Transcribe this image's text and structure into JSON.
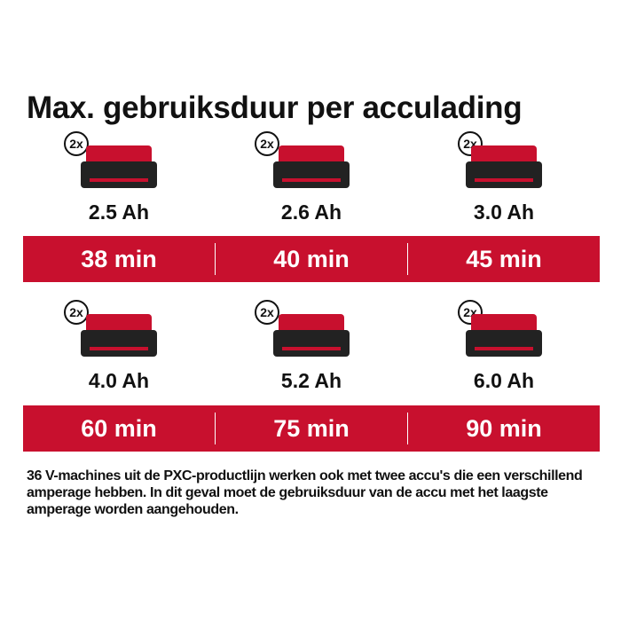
{
  "title": "Max. gebruiksduur per acculading",
  "quantity_badge": "2x",
  "brand_color": "#c8102e",
  "batteries": [
    {
      "capacity": "2.5 Ah",
      "runtime": "38 min"
    },
    {
      "capacity": "2.6 Ah",
      "runtime": "40 min"
    },
    {
      "capacity": "3.0 Ah",
      "runtime": "45 min"
    },
    {
      "capacity": "4.0 Ah",
      "runtime": "60 min"
    },
    {
      "capacity": "5.2 Ah",
      "runtime": "75 min"
    },
    {
      "capacity": "6.0 Ah",
      "runtime": "90 min"
    }
  ],
  "note": "36 V-machines uit de PXC-productlijn werken ook met twee accu's die een verschillend amperage hebben. In dit geval moet de gebruiksduur van de accu met het laagste amperage worden aangehouden."
}
